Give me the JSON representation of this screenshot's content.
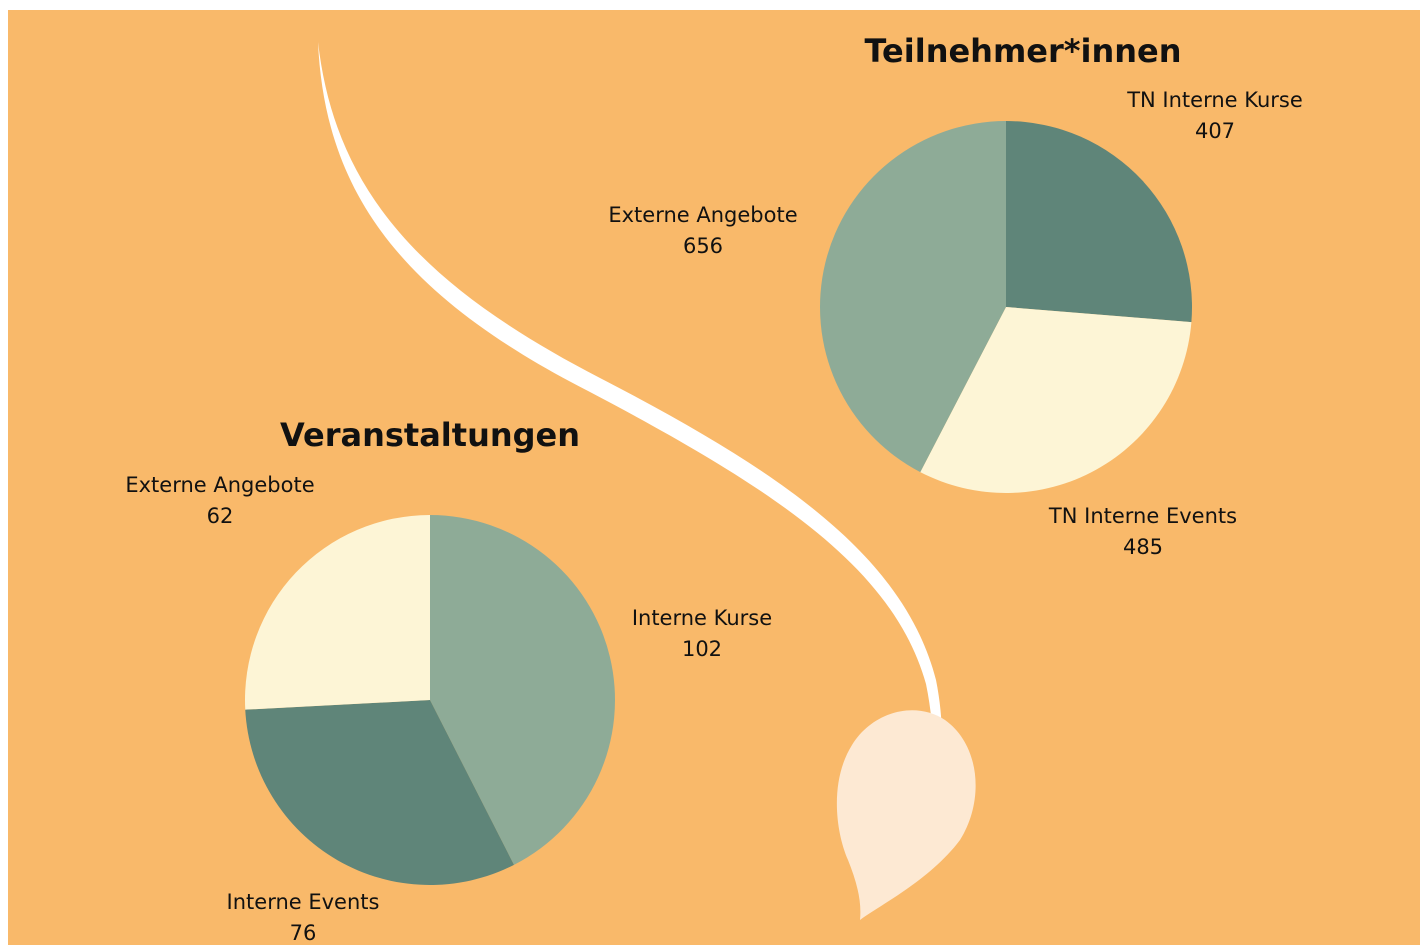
{
  "chart_data": [
    {
      "type": "pie",
      "title": "Teilnehmer*innen",
      "categories": [
        "TN Interne Kurse",
        "TN Interne Events",
        "Externe Angebote"
      ],
      "values": [
        407,
        485,
        656
      ],
      "colors": [
        "#5f8579",
        "#fdf5d6",
        "#8eab97"
      ]
    },
    {
      "type": "pie",
      "title": "Veranstaltungen",
      "categories": [
        "Interne Kurse",
        "Interne Events",
        "Externe Angebote"
      ],
      "values": [
        102,
        76,
        62
      ],
      "colors": [
        "#8eab97",
        "#5f8579",
        "#fdf5d6"
      ]
    }
  ]
}
